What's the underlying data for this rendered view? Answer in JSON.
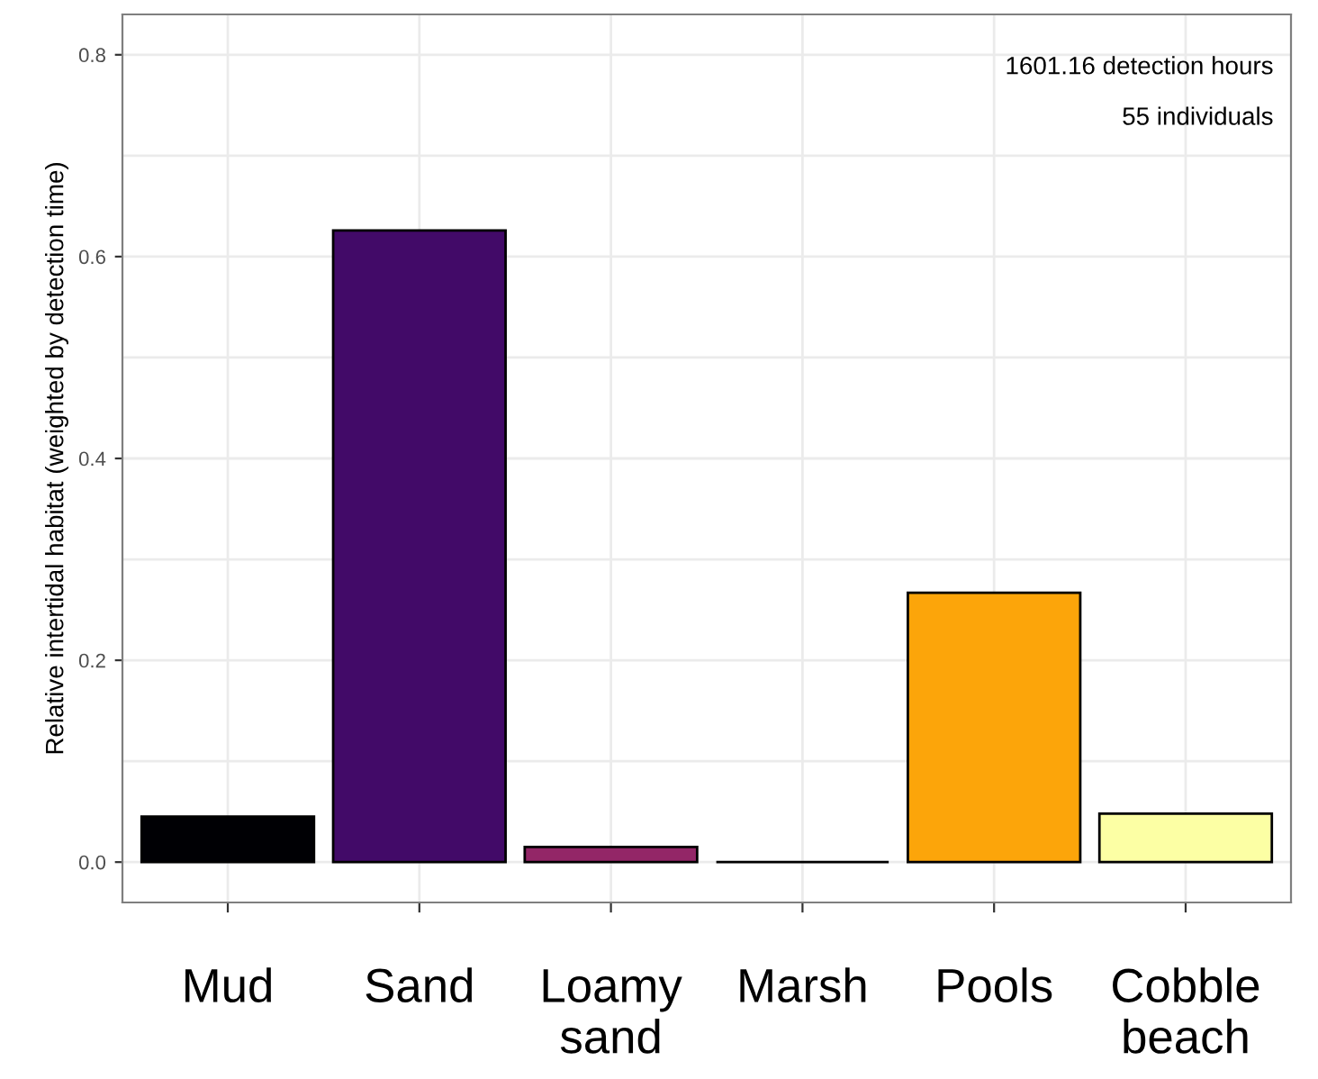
{
  "chart_data": {
    "type": "bar",
    "ylabel": "Relative intertidal habitat (weighted by detection time)",
    "categories": [
      "Mud",
      "Sand",
      "Loamy\nsand",
      "Marsh",
      "Pools",
      "Cobble\nbeach"
    ],
    "values": [
      0.045,
      0.626,
      0.015,
      0.0,
      0.267,
      0.048
    ],
    "colors": [
      "#000004",
      "#420a68",
      "#932667",
      "#000000",
      "#fca50a",
      "#fcffa4"
    ],
    "ylim": [
      -0.04,
      0.84
    ],
    "yticks": [
      {
        "value": 0,
        "label": "0.0"
      },
      0.2,
      0.4,
      0.6,
      0.8
    ],
    "grid": true,
    "annotations": [
      "1601.16 detection hours",
      "55 individuals"
    ]
  }
}
